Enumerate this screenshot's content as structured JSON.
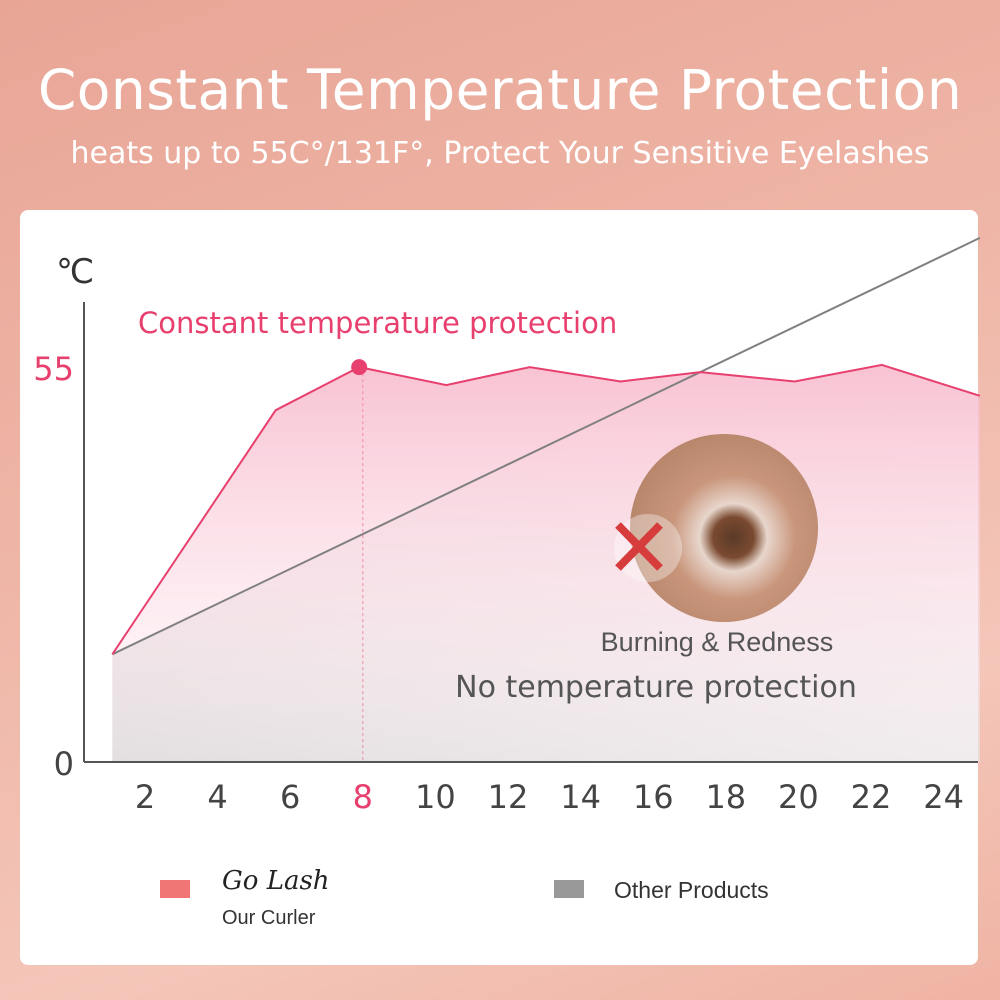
{
  "header": {
    "title": "Constant Temperature Protection",
    "subtitle": "heats up to 55C°/131F°, Protect Your Sensitive Eyelashes"
  },
  "chart_data": {
    "type": "line",
    "ylabel": "℃",
    "y_ticks": [
      "0",
      "55"
    ],
    "x_ticks": [
      "2",
      "4",
      "6",
      "8",
      "10",
      "12",
      "14",
      "16",
      "18",
      "20",
      "22",
      "24"
    ],
    "highlight_x_tick": "8",
    "xlim": [
      1,
      25
    ],
    "ylim": [
      0,
      73
    ],
    "annotation": "Constant temperature protection",
    "series": [
      {
        "name": "Our Curler",
        "color": "#e8406e",
        "x": [
          1.1,
          5.6,
          7.9,
          10.3,
          12.6,
          15.1,
          17.3,
          19.9,
          22.3,
          25
        ],
        "y": [
          15,
          49,
          55,
          52.5,
          55,
          53,
          54.3,
          53,
          55.3,
          51
        ]
      },
      {
        "name": "Other Products",
        "color": "#808080",
        "x": [
          1.1,
          25
        ],
        "y": [
          15,
          73
        ]
      }
    ],
    "legend": [
      {
        "brand": "Go Lash",
        "label": "Our Curler",
        "color": "#ef7674"
      },
      {
        "label": "Other Products",
        "color": "#999999"
      }
    ],
    "legend_position": "bottom"
  },
  "callout": {
    "caption": "Burning & Redness",
    "text": "No temperature protection",
    "icon": "red-x-icon"
  }
}
